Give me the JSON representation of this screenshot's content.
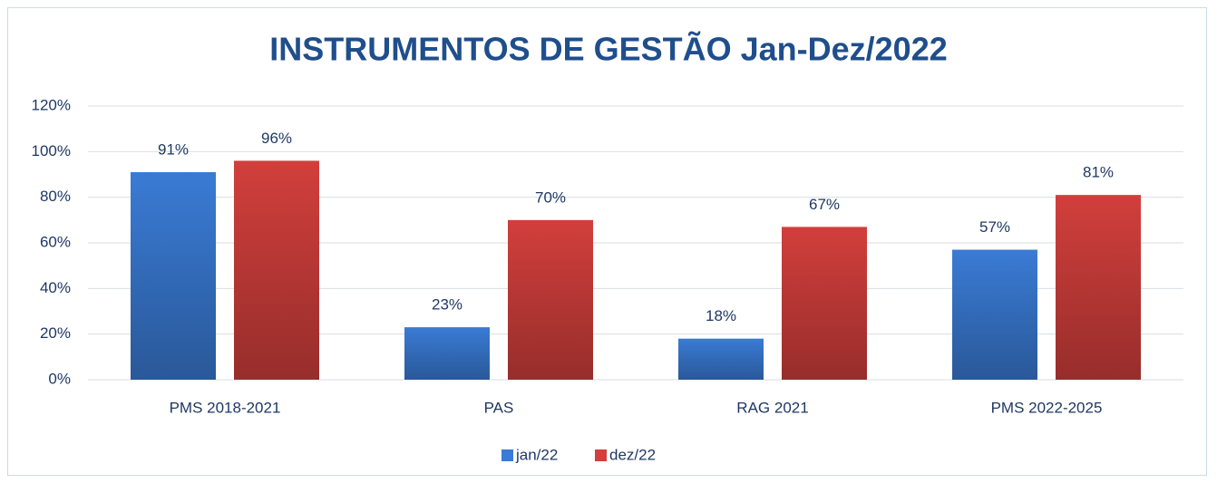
{
  "chart_data": {
    "type": "bar",
    "title": "INSTRUMENTOS DE GESTÃO Jan-Dez/2022",
    "categories": [
      "PMS 2018-2021",
      "PAS",
      "RAG 2021",
      "PMS 2022-2025"
    ],
    "series": [
      {
        "name": "jan/22",
        "color": "#3a7bd5",
        "values": [
          91,
          23,
          18,
          57
        ],
        "value_labels": [
          "91%",
          "23%",
          "18%",
          "57%"
        ]
      },
      {
        "name": "dez/22",
        "color": "#d23f3c",
        "values": [
          96,
          70,
          67,
          81
        ],
        "value_labels": [
          "96%",
          "70%",
          "67%",
          "81%"
        ]
      }
    ],
    "ylim": [
      0,
      120
    ],
    "yticks": [
      {
        "value": 0,
        "label": "0%"
      },
      {
        "value": 20,
        "label": "20%"
      },
      {
        "value": 40,
        "label": "40%"
      },
      {
        "value": 60,
        "label": "60%"
      },
      {
        "value": 80,
        "label": "80%"
      },
      {
        "value": 100,
        "label": "100%"
      },
      {
        "value": 120,
        "label": "120%"
      }
    ],
    "grid": true,
    "legend": "bottom"
  }
}
